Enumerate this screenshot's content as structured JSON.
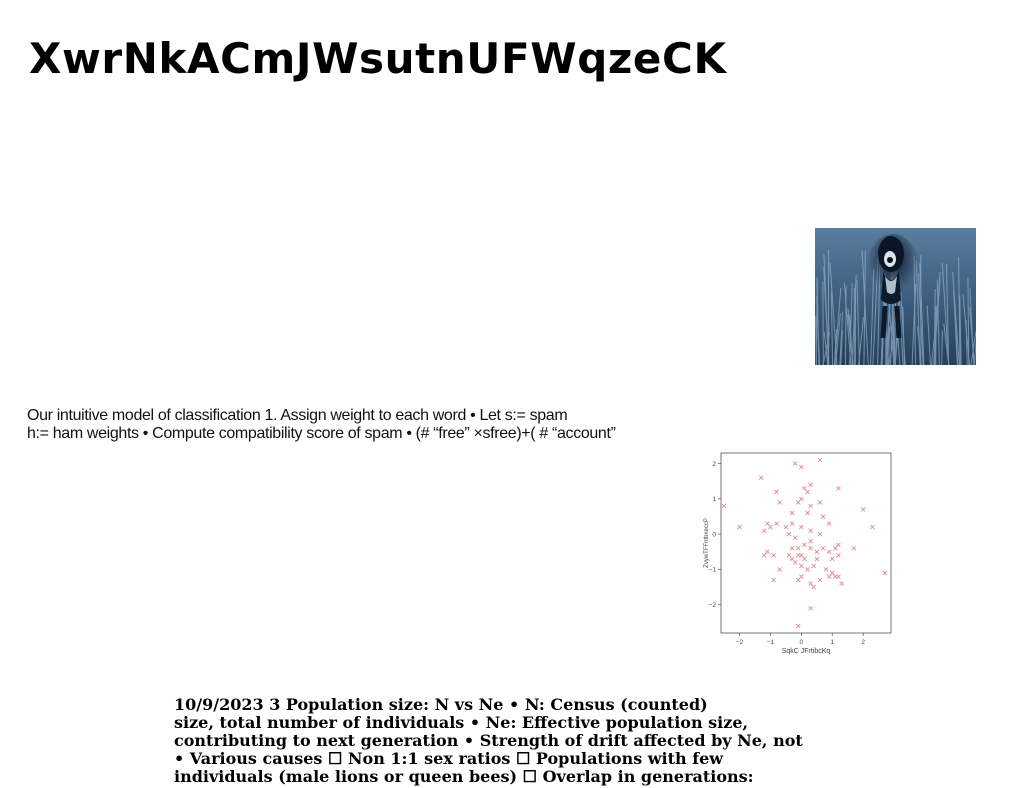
{
  "title": "XwrNkACmJWsutnUFWqzeCK",
  "photo": {
    "icon": "dog-in-tall-grass-photo"
  },
  "paragraph1": {
    "lines": [
      "Our intuitive model of classification 1. Assign weight to each word • Let s:= spam",
      "h:= ham weights • Compute compatibility score of spam • (# “free” ×sfree)+( # “account”"
    ]
  },
  "chart_data": {
    "type": "scatter",
    "title": "",
    "xlabel": "SqkC JFrtibcKq",
    "ylabel": "ZvywTFFntbxeccP",
    "xlim": [
      -2.6,
      2.9
    ],
    "ylim": [
      -2.8,
      2.3
    ],
    "xticks": [
      "−2",
      "−1",
      "0",
      "1",
      "2"
    ],
    "yticks": [
      "2",
      "1",
      "0",
      "−1",
      "−2"
    ],
    "marker": "x",
    "color": "#e08a9a",
    "grid": false,
    "points": [
      [
        -0.2,
        2.0
      ],
      [
        0.0,
        1.9
      ],
      [
        0.6,
        2.1
      ],
      [
        -1.3,
        1.6
      ],
      [
        0.1,
        1.3
      ],
      [
        0.2,
        1.2
      ],
      [
        0.3,
        1.4
      ],
      [
        -0.8,
        1.2
      ],
      [
        1.2,
        1.3
      ],
      [
        -0.7,
        0.9
      ],
      [
        -0.1,
        0.9
      ],
      [
        0.0,
        1.0
      ],
      [
        0.6,
        0.9
      ],
      [
        0.3,
        0.8
      ],
      [
        -2.5,
        0.8
      ],
      [
        2.0,
        0.7
      ],
      [
        0.2,
        0.6
      ],
      [
        0.7,
        0.5
      ],
      [
        -0.3,
        0.6
      ],
      [
        -0.8,
        0.3
      ],
      [
        -1.1,
        0.3
      ],
      [
        -0.5,
        0.2
      ],
      [
        -1.2,
        0.1
      ],
      [
        -0.3,
        0.3
      ],
      [
        -1.0,
        0.2
      ],
      [
        -2.0,
        0.2
      ],
      [
        0.0,
        0.2
      ],
      [
        0.9,
        0.3
      ],
      [
        2.3,
        0.2
      ],
      [
        0.3,
        0.1
      ],
      [
        0.6,
        0.0
      ],
      [
        -0.2,
        -0.1
      ],
      [
        -0.4,
        0.0
      ],
      [
        0.3,
        -0.2
      ],
      [
        0.1,
        -0.3
      ],
      [
        1.2,
        -0.3
      ],
      [
        -0.1,
        -0.4
      ],
      [
        0.7,
        -0.4
      ],
      [
        0.3,
        -0.4
      ],
      [
        0.5,
        -0.5
      ],
      [
        0.9,
        -0.5
      ],
      [
        1.1,
        -0.4
      ],
      [
        1.7,
        -0.4
      ],
      [
        -1.1,
        -0.5
      ],
      [
        -0.3,
        -0.4
      ],
      [
        -0.4,
        -0.6
      ],
      [
        -1.2,
        -0.6
      ],
      [
        -0.9,
        -0.6
      ],
      [
        -0.1,
        -0.6
      ],
      [
        0.0,
        -0.6
      ],
      [
        0.1,
        -0.7
      ],
      [
        -0.3,
        -0.7
      ],
      [
        0.5,
        -0.7
      ],
      [
        1.2,
        -0.6
      ],
      [
        1.0,
        -0.7
      ],
      [
        -0.2,
        -0.8
      ],
      [
        0.0,
        -0.9
      ],
      [
        0.4,
        -0.9
      ],
      [
        0.8,
        -1.0
      ],
      [
        0.2,
        -1.0
      ],
      [
        -0.7,
        -1.0
      ],
      [
        1.0,
        -1.1
      ],
      [
        0.9,
        -1.2
      ],
      [
        1.2,
        -1.2
      ],
      [
        2.7,
        -1.1
      ],
      [
        1.1,
        -1.2
      ],
      [
        0.0,
        -1.2
      ],
      [
        -0.1,
        -1.3
      ],
      [
        -0.9,
        -1.3
      ],
      [
        0.6,
        -1.3
      ],
      [
        0.3,
        -1.4
      ],
      [
        0.4,
        -1.5
      ],
      [
        1.3,
        -1.4
      ],
      [
        0.3,
        -2.1
      ],
      [
        -0.1,
        -2.6
      ]
    ]
  },
  "paragraph2": {
    "lines": [
      "10/9/2023 3 Population size: N vs Ne • N: Census (counted)",
      "size, total number of individuals • Ne: Effective population size,",
      "contributing to next generation • Strength of drift affected by Ne, not",
      "• Various causes ☐ Non 1:1 sex ratios ☐ Populations with few",
      "individuals (male lions or queen bees) ☐ Overlap in generations:"
    ]
  }
}
